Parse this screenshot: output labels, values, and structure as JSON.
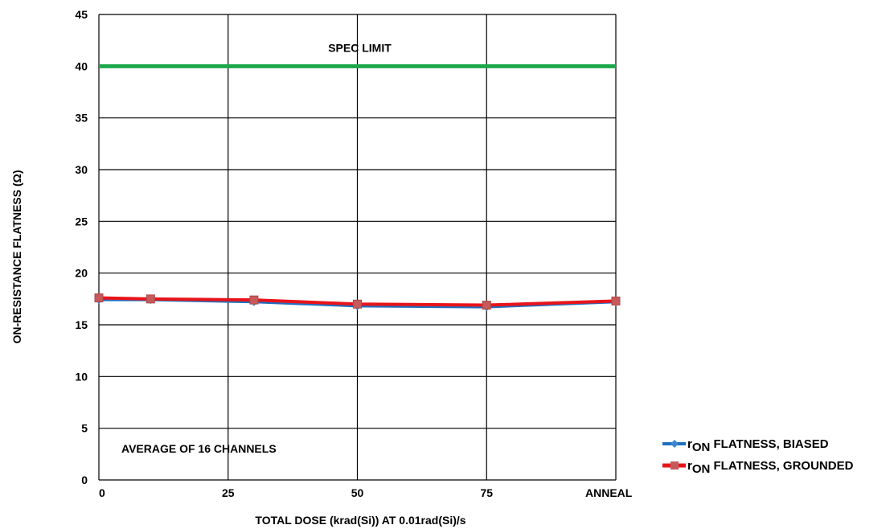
{
  "chart_data": {
    "type": "line",
    "xlabel": "TOTAL DOSE (krad(Si)) AT 0.01rad(Si)/s",
    "ylabel": "ON-RESISTANCE FLATNESS (Ω)",
    "ylim": [
      0,
      45
    ],
    "yticks": [
      0,
      5,
      10,
      15,
      20,
      25,
      30,
      35,
      40,
      45
    ],
    "xlim": [
      0,
      100
    ],
    "xticks": [
      {
        "value": 0,
        "label": "0"
      },
      {
        "value": 25,
        "label": "25"
      },
      {
        "value": 50,
        "label": "50"
      },
      {
        "value": 75,
        "label": "75"
      },
      {
        "value": 100,
        "label": "ANNEAL"
      }
    ],
    "x": [
      0,
      10,
      30,
      50,
      75,
      100
    ],
    "grid": true,
    "legend_position": "bottom-right",
    "series": [
      {
        "name": "rON FLATNESS, BIASED",
        "name_main": "r",
        "name_sub": "ON",
        "name_rest": " FLATNESS, BIASED",
        "color": "#1f6fc0",
        "marker": "diamond",
        "values": [
          17.4,
          17.4,
          17.2,
          16.8,
          16.7,
          17.2
        ]
      },
      {
        "name": "rON FLATNESS, GROUNDED",
        "name_main": "r",
        "name_sub": "ON",
        "name_rest": " FLATNESS, GROUNDED",
        "color": "#e8141b",
        "marker": "square",
        "values": [
          17.6,
          17.5,
          17.4,
          17.0,
          16.9,
          17.3
        ]
      }
    ],
    "spec_limit": {
      "label": "SPEC LIMIT",
      "value": 40,
      "color": "#1aa84a"
    },
    "annotations": [
      {
        "text": "AVERAGE OF 16 CHANNELS"
      }
    ]
  }
}
